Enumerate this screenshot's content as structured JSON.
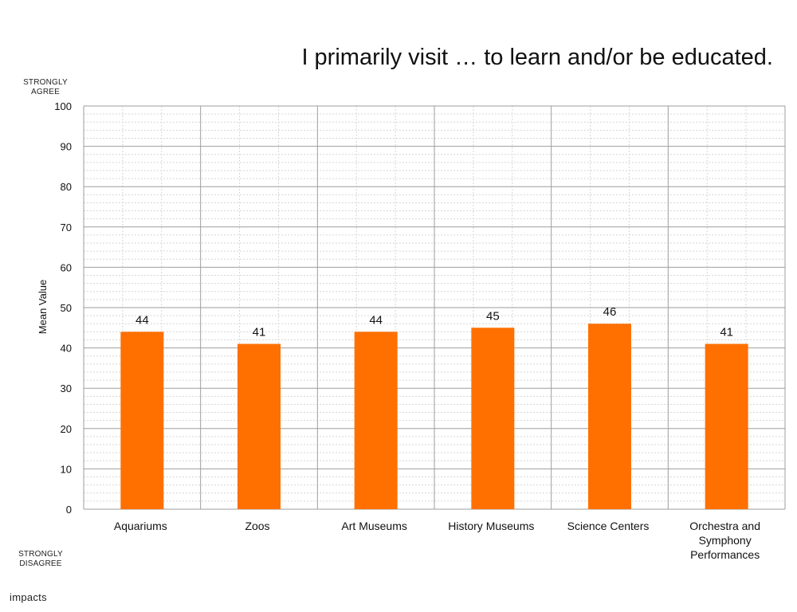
{
  "header": {
    "strongly_agree_line1": "STRONGLY",
    "strongly_agree_line2": "AGREE",
    "strongly_disagree_line1": "STRONGLY",
    "strongly_disagree_line2": "DISAGREE",
    "logo": "impacts"
  },
  "colors": {
    "bar": "#ff7000",
    "major_grid": "#9e9e9e",
    "minor_grid": "#d6d6d6"
  },
  "chart_data": {
    "type": "bar",
    "title": "I primarily visit … to learn and/or be educated.",
    "xlabel": "",
    "ylabel": "Mean Value",
    "ylim": [
      0,
      100
    ],
    "yticks": [
      0,
      10,
      20,
      30,
      40,
      50,
      60,
      70,
      80,
      90,
      100
    ],
    "grid": true,
    "categories": [
      [
        "Aquariums"
      ],
      [
        "Zoos"
      ],
      [
        "Art Museums"
      ],
      [
        "History Museums"
      ],
      [
        "Science Centers"
      ],
      [
        "Orchestra and",
        "Symphony",
        "Performances"
      ]
    ],
    "values": [
      44,
      41,
      44,
      45,
      46,
      41
    ],
    "data_labels": [
      "44",
      "41",
      "44",
      "45",
      "46",
      "41"
    ]
  }
}
